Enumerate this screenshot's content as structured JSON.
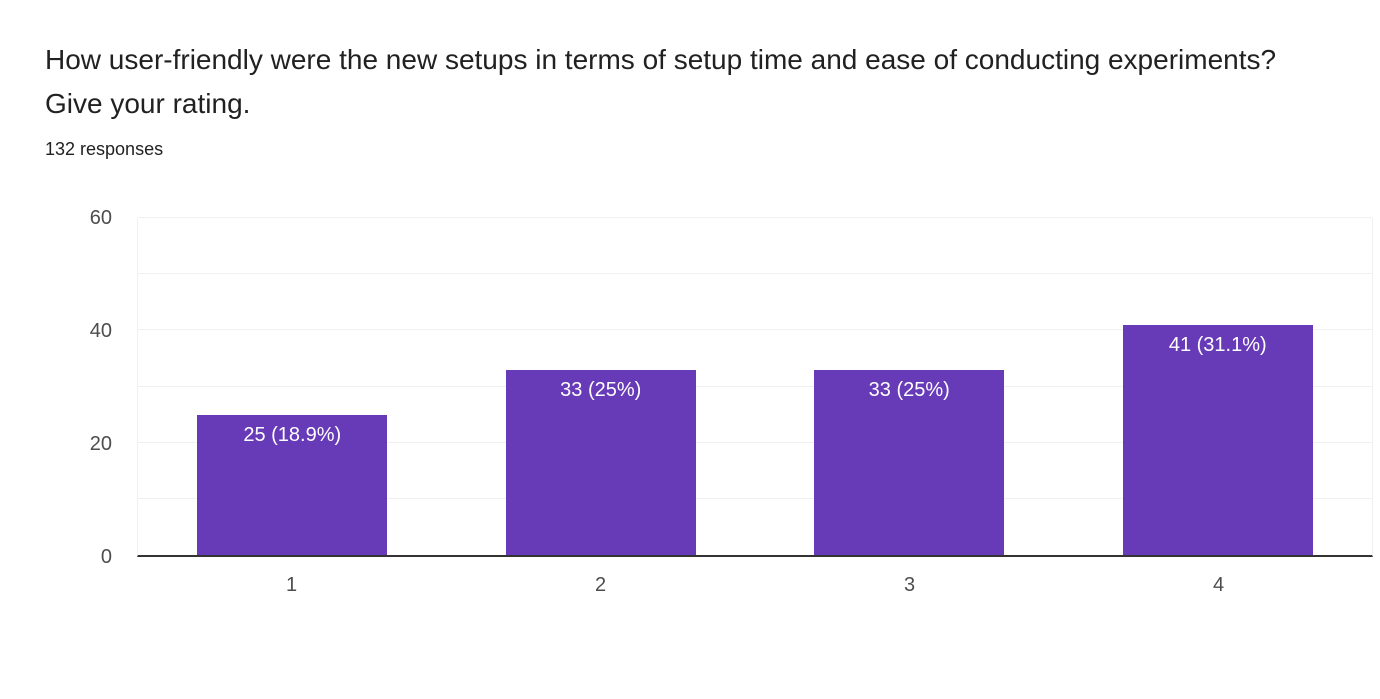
{
  "header": {
    "title": "How user-friendly were the new setups in terms of setup time and ease of conducting experiments? Give your rating.",
    "title_lines": [
      "How user-friendly were the new setups in terms of setup time and ease of conducting experiments?",
      "Give your rating."
    ],
    "responses_count": "132 responses"
  },
  "chart_data": {
    "type": "bar",
    "title": "How user-friendly were the new setups in terms of setup time and ease of conducting experiments? Give your rating.",
    "subtitle": "132 responses",
    "categories": [
      "1",
      "2",
      "3",
      "4"
    ],
    "values": [
      25,
      33,
      33,
      41
    ],
    "bar_labels": [
      "25 (18.9%)",
      "33 (25%)",
      "33 (25%)",
      "41 (31.1%)"
    ],
    "xlabel": "",
    "ylabel": "",
    "ylim": [
      0,
      60
    ],
    "yticks": [
      0,
      20,
      40,
      60
    ],
    "gridline_interval": 10,
    "grid": true,
    "legend": "none",
    "orientation": "vertical"
  },
  "colors": {
    "bar": "#673ab7",
    "bar_label_text": "#ffffff",
    "gridline": "#f0f0f0",
    "axis_line": "#333333",
    "tick_label": "#4d4d4d",
    "title_text": "#212121",
    "background": "#ffffff"
  }
}
